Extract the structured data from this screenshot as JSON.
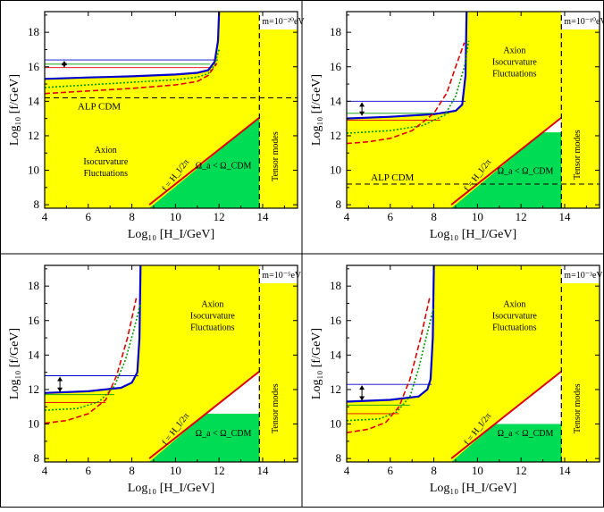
{
  "chart_data": [
    {
      "type": "area",
      "panel": "top-left",
      "mass_label": "m=10⁻²⁰eV",
      "xlabel": "Log₁₀ [H_I/GeV]",
      "ylabel": "Log₁₀ [f/GeV]",
      "xlim": [
        4,
        15.6
      ],
      "ylim": [
        7.8,
        19.2
      ],
      "xticks": [
        "4",
        "6",
        "8",
        "10",
        "12",
        "14"
      ],
      "yticks": [
        "8",
        "10",
        "12",
        "14",
        "16",
        "18"
      ],
      "annotations": {
        "alp": "ALP CDM",
        "iso1": "Axion",
        "iso2": "Isocurvature",
        "iso3": "Fluctuations",
        "tensor": "Tensor modes",
        "diag": "f = H_I/2π",
        "omega": "Ω_a < Ω_CDM"
      },
      "alp_cdm_f": 14.2,
      "tensor_HI": 13.85,
      "series": [
        {
          "style": "blue-solid",
          "x": [
            4,
            6,
            8,
            10,
            11,
            11.5,
            11.8,
            11.95,
            12.0
          ],
          "y": [
            15.3,
            15.38,
            15.45,
            15.55,
            15.65,
            15.8,
            16.3,
            17.5,
            19.2
          ]
        },
        {
          "style": "green-dotted",
          "x": [
            4,
            6,
            8,
            10,
            11,
            11.5,
            11.8,
            12.0
          ],
          "y": [
            14.8,
            14.95,
            15.1,
            15.25,
            15.4,
            15.6,
            16.1,
            17.0
          ]
        },
        {
          "style": "red-dashed",
          "x": [
            4,
            6,
            8,
            10,
            11,
            11.5,
            11.9
          ],
          "y": [
            14.45,
            14.6,
            14.75,
            14.95,
            15.15,
            15.5,
            16.2
          ]
        }
      ],
      "hlines": [
        {
          "color": "blue",
          "y": 16.4,
          "x": [
            4,
            11.95
          ]
        },
        {
          "color": "red",
          "y": 15.95,
          "x": [
            4,
            11.6
          ]
        },
        {
          "color": "green",
          "y": 16.15,
          "x": [
            4,
            11.6
          ]
        }
      ],
      "arrow": {
        "x": 4.9,
        "y": [
          15.9,
          16.4
        ]
      }
    },
    {
      "type": "area",
      "panel": "top-right",
      "mass_label": "m=10⁻¹⁰eV",
      "xlabel": "Log₁₀ [H_I/GeV]",
      "ylabel": "Log₁₀ [f/GeV]",
      "xlim": [
        4,
        15.6
      ],
      "ylim": [
        7.8,
        19.2
      ],
      "xticks": [
        "4",
        "6",
        "8",
        "10",
        "12",
        "14"
      ],
      "yticks": [
        "8",
        "10",
        "12",
        "14",
        "16",
        "18"
      ],
      "annotations": {
        "alp": "ALP CDM",
        "iso1": "Axion",
        "iso2": "Isocurvature",
        "iso3": "Fluctuations",
        "tensor": "Tensor modes",
        "diag": "f = H_I/2π",
        "omega": "Ω_a < Ω_CDM"
      },
      "alp_cdm_f": 9.2,
      "tensor_HI": 13.85,
      "green_top_f": 12.2,
      "series": [
        {
          "style": "blue-solid",
          "x": [
            4,
            6,
            8,
            9,
            9.3,
            9.45,
            9.5
          ],
          "y": [
            13.0,
            13.1,
            13.25,
            13.45,
            13.8,
            15.5,
            19.2
          ]
        },
        {
          "style": "green-dotted",
          "x": [
            4,
            6,
            7.5,
            8.5,
            9.0,
            9.4,
            9.6
          ],
          "y": [
            12.15,
            12.3,
            12.6,
            13.2,
            14.3,
            16.0,
            17.5
          ]
        },
        {
          "style": "red-dashed",
          "x": [
            4,
            5,
            6,
            7,
            8,
            8.6,
            9.0,
            9.4
          ],
          "y": [
            11.55,
            11.65,
            11.85,
            12.3,
            13.3,
            14.5,
            16.0,
            17.4
          ]
        }
      ],
      "hlines": [
        {
          "color": "blue",
          "y": 14.0,
          "x": [
            4,
            9.45
          ]
        },
        {
          "color": "red",
          "y": 12.9,
          "x": [
            4,
            8.3
          ]
        },
        {
          "color": "green",
          "y": 13.3,
          "x": [
            4,
            8.7
          ]
        }
      ],
      "arrow": {
        "x": 4.7,
        "y": [
          13.1,
          14.0
        ]
      }
    },
    {
      "type": "area",
      "panel": "bottom-left",
      "mass_label": "m=10⁻⁵eV",
      "xlabel": "Log₁₀ [H_I/GeV]",
      "ylabel": "Log₁₀ [f/GeV]",
      "xlim": [
        4,
        15.6
      ],
      "ylim": [
        7.8,
        19.2
      ],
      "xticks": [
        "4",
        "6",
        "8",
        "10",
        "12",
        "14"
      ],
      "yticks": [
        "8",
        "10",
        "12",
        "14",
        "16",
        "18"
      ],
      "annotations": {
        "iso1": "Axion",
        "iso2": "Isocurvature",
        "iso3": "Fluctuations",
        "tensor": "Tensor modes",
        "diag": "f = H_I/2π",
        "omega": "Ω_a < Ω_CDM"
      },
      "tensor_HI": 13.85,
      "green_top_f": 10.6,
      "series": [
        {
          "style": "blue-solid",
          "x": [
            4,
            6,
            7.5,
            8.0,
            8.25,
            8.35,
            8.4
          ],
          "y": [
            11.8,
            11.9,
            12.1,
            12.4,
            13.0,
            15.0,
            19.2
          ]
        },
        {
          "style": "green-dotted",
          "x": [
            4,
            5.5,
            6.5,
            7.2,
            7.7,
            8.1,
            8.4
          ],
          "y": [
            10.8,
            10.9,
            11.3,
            12.2,
            13.7,
            15.5,
            17.0
          ]
        },
        {
          "style": "red-dashed",
          "x": [
            4,
            5,
            6,
            6.8,
            7.3,
            7.8,
            8.2
          ],
          "y": [
            10.05,
            10.2,
            10.6,
            11.4,
            12.8,
            15.0,
            17.3
          ]
        }
      ],
      "hlines": [
        {
          "color": "blue",
          "y": 12.8,
          "x": [
            4,
            8.3
          ]
        },
        {
          "color": "red",
          "y": 11.25,
          "x": [
            4,
            6.8
          ]
        },
        {
          "color": "green",
          "y": 11.7,
          "x": [
            4,
            7.2
          ]
        }
      ],
      "arrow": {
        "x": 4.7,
        "y": [
          11.8,
          12.8
        ]
      }
    },
    {
      "type": "area",
      "panel": "bottom-right",
      "mass_label": "m=10⁻³eV",
      "xlabel": "Log₁₀ [H_I/GeV]",
      "ylabel": "Log₁₀ [f/GeV]",
      "xlim": [
        4,
        15.6
      ],
      "ylim": [
        7.8,
        19.2
      ],
      "xticks": [
        "4",
        "6",
        "8",
        "10",
        "12",
        "14"
      ],
      "yticks": [
        "8",
        "10",
        "12",
        "14",
        "16",
        "18"
      ],
      "annotations": {
        "iso1": "Axion",
        "iso2": "Isocurvature",
        "iso3": "Fluctuations",
        "tensor": "Tensor modes",
        "diag": "f = H_I/2π",
        "omega": "Ω_a < Ω_CDM"
      },
      "tensor_HI": 13.85,
      "green_top_f": 10.0,
      "series": [
        {
          "style": "blue-solid",
          "x": [
            4,
            6,
            7.3,
            7.7,
            7.85,
            7.95,
            8.0
          ],
          "y": [
            11.3,
            11.4,
            11.6,
            12.0,
            12.6,
            15.0,
            19.2
          ]
        },
        {
          "style": "green-dotted",
          "x": [
            4,
            5.5,
            6.3,
            6.9,
            7.3,
            7.7,
            8.0
          ],
          "y": [
            10.2,
            10.3,
            10.7,
            11.6,
            13.2,
            15.3,
            16.8
          ]
        },
        {
          "style": "red-dashed",
          "x": [
            4,
            5,
            5.8,
            6.4,
            6.9,
            7.4,
            7.8
          ],
          "y": [
            9.5,
            9.7,
            10.1,
            11.0,
            12.6,
            15.0,
            17.3
          ]
        }
      ],
      "hlines": [
        {
          "color": "blue",
          "y": 12.3,
          "x": [
            4,
            7.9
          ]
        },
        {
          "color": "red",
          "y": 10.6,
          "x": [
            4,
            6.4
          ]
        },
        {
          "color": "green",
          "y": 11.1,
          "x": [
            4,
            6.9
          ]
        }
      ],
      "arrow": {
        "x": 4.7,
        "y": [
          11.3,
          12.3
        ]
      }
    }
  ],
  "colors": {
    "yellow": "#ffff00",
    "green": "#00dd55",
    "blue": "#0000cc",
    "red": "#dd0000",
    "green_line": "#009900",
    "diag": "#dd0000"
  }
}
